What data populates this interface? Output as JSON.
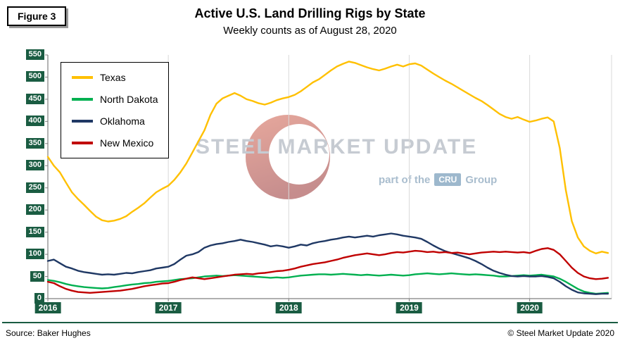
{
  "page": {
    "figure_label": "Figure 3",
    "title": "Active U.S. Land Drilling Rigs by State",
    "subtitle": "Weekly counts as of August 28, 2020",
    "footer": {
      "source": "Source: Baker Hughes",
      "copyright": "© Steel Market Update 2020"
    }
  },
  "watermark": {
    "brand": "STEEL MARKET UPDATE",
    "tagline_prefix": "part of the",
    "tagline_badge": "CRU",
    "tagline_suffix": "Group"
  },
  "colors": {
    "axis_label_bg": "#1A5C42",
    "axis_label_text": "#FFFFFF",
    "footer_rule": "#1A5C42",
    "gridline": "#D9D9D9",
    "axis_line": "#808080",
    "watermark_red": "#B03A2E"
  },
  "chart_data": {
    "type": "line",
    "title": "Active U.S. Land Drilling Rigs by State",
    "subtitle": "Weekly counts as of August 28, 2020",
    "xlabel": "",
    "ylabel": "",
    "x_unit": "decimal year (weekly rig counts, 2016 through Aug 28, 2020)",
    "ylim": [
      0,
      550
    ],
    "y_ticks": [
      0,
      50,
      100,
      150,
      200,
      250,
      300,
      350,
      400,
      450,
      500,
      550
    ],
    "x_ticks": [
      2016,
      2017,
      2018,
      2019,
      2020
    ],
    "grid": "vertical-only",
    "legend_position": "upper-left",
    "x": [
      2016,
      2016.05,
      2016.1,
      2016.15,
      2016.2,
      2016.25,
      2016.3,
      2016.35,
      2016.4,
      2016.45,
      2016.5,
      2016.55,
      2016.6,
      2016.65,
      2016.7,
      2016.75,
      2016.8,
      2016.85,
      2016.9,
      2016.95,
      2017,
      2017.05,
      2017.1,
      2017.15,
      2017.2,
      2017.25,
      2017.3,
      2017.35,
      2017.4,
      2017.45,
      2017.5,
      2017.55,
      2017.6,
      2017.65,
      2017.7,
      2017.75,
      2017.8,
      2017.85,
      2017.9,
      2017.95,
      2018,
      2018.05,
      2018.1,
      2018.15,
      2018.2,
      2018.25,
      2018.3,
      2018.35,
      2018.4,
      2018.45,
      2018.5,
      2018.55,
      2018.6,
      2018.65,
      2018.7,
      2018.75,
      2018.8,
      2018.85,
      2018.9,
      2018.95,
      2019,
      2019.05,
      2019.1,
      2019.15,
      2019.2,
      2019.25,
      2019.3,
      2019.35,
      2019.4,
      2019.45,
      2019.5,
      2019.55,
      2019.6,
      2019.65,
      2019.7,
      2019.75,
      2019.8,
      2019.85,
      2019.9,
      2019.95,
      2020,
      2020.05,
      2020.1,
      2020.15,
      2020.2,
      2020.25,
      2020.3,
      2020.35,
      2020.4,
      2020.45,
      2020.5,
      2020.55,
      2020.6,
      2020.65
    ],
    "series": [
      {
        "name": "Texas",
        "color": "#FFC000",
        "values": [
          320,
          300,
          285,
          262,
          240,
          225,
          212,
          198,
          185,
          177,
          174,
          176,
          180,
          186,
          196,
          205,
          215,
          228,
          240,
          248,
          255,
          268,
          285,
          305,
          330,
          355,
          380,
          415,
          440,
          452,
          458,
          464,
          458,
          450,
          446,
          441,
          438,
          442,
          448,
          452,
          455,
          460,
          468,
          478,
          488,
          495,
          505,
          515,
          524,
          530,
          535,
          532,
          527,
          522,
          518,
          515,
          519,
          524,
          528,
          524,
          529,
          531,
          526,
          517,
          508,
          500,
          492,
          485,
          477,
          469,
          461,
          453,
          446,
          437,
          427,
          417,
          410,
          406,
          410,
          404,
          399,
          402,
          406,
          409,
          400,
          340,
          245,
          175,
          138,
          118,
          108,
          102,
          106,
          103
        ]
      },
      {
        "name": "North Dakota",
        "color": "#00B050",
        "values": [
          42,
          40,
          37,
          33,
          30,
          28,
          26,
          25,
          24,
          23,
          24,
          26,
          28,
          30,
          32,
          33,
          35,
          36,
          38,
          39,
          40,
          42,
          44,
          45,
          46,
          48,
          50,
          51,
          52,
          51,
          52,
          53,
          52,
          51,
          50,
          49,
          48,
          47,
          48,
          47,
          48,
          50,
          52,
          53,
          54,
          55,
          55,
          54,
          55,
          56,
          55,
          54,
          53,
          54,
          53,
          52,
          53,
          54,
          53,
          52,
          53,
          55,
          56,
          57,
          56,
          55,
          56,
          57,
          56,
          55,
          54,
          55,
          54,
          53,
          52,
          50,
          50,
          51,
          52,
          53,
          52,
          53,
          54,
          52,
          50,
          45,
          38,
          30,
          22,
          16,
          13,
          11,
          12,
          13
        ]
      },
      {
        "name": "Oklahoma",
        "color": "#1F3864",
        "values": [
          85,
          88,
          80,
          72,
          68,
          63,
          60,
          58,
          56,
          54,
          55,
          54,
          56,
          58,
          57,
          60,
          62,
          64,
          68,
          70,
          72,
          78,
          88,
          97,
          100,
          105,
          115,
          120,
          123,
          125,
          128,
          130,
          133,
          130,
          128,
          125,
          122,
          118,
          120,
          118,
          115,
          118,
          122,
          120,
          125,
          128,
          130,
          133,
          135,
          138,
          140,
          138,
          140,
          142,
          140,
          143,
          145,
          147,
          145,
          142,
          140,
          138,
          135,
          128,
          120,
          113,
          107,
          103,
          99,
          95,
          91,
          85,
          78,
          70,
          63,
          58,
          54,
          51,
          50,
          51,
          50,
          50,
          51,
          49,
          46,
          38,
          28,
          20,
          14,
          12,
          11,
          10,
          11,
          11
        ]
      },
      {
        "name": "New Mexico",
        "color": "#C00000",
        "values": [
          38,
          35,
          28,
          22,
          18,
          15,
          14,
          13,
          14,
          15,
          16,
          17,
          18,
          20,
          22,
          25,
          28,
          30,
          32,
          34,
          35,
          38,
          42,
          45,
          48,
          46,
          44,
          46,
          48,
          50,
          52,
          54,
          55,
          56,
          55,
          57,
          58,
          60,
          62,
          63,
          65,
          68,
          72,
          75,
          78,
          80,
          82,
          85,
          88,
          92,
          95,
          98,
          100,
          102,
          100,
          98,
          100,
          103,
          105,
          104,
          106,
          108,
          107,
          105,
          106,
          104,
          105,
          103,
          104,
          102,
          100,
          102,
          104,
          105,
          106,
          105,
          106,
          105,
          104,
          105,
          103,
          108,
          112,
          114,
          110,
          100,
          85,
          70,
          58,
          50,
          46,
          44,
          45,
          47
        ]
      }
    ]
  }
}
